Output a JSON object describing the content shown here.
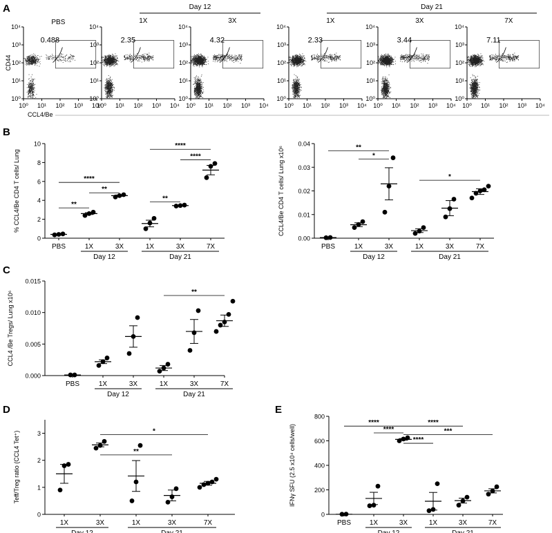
{
  "panel_letters": [
    "A",
    "B",
    "C",
    "D",
    "E"
  ],
  "chart_data": [
    {
      "id": "A",
      "type": "scatter",
      "description_kind": "flow-cytometry-dot-plots",
      "xlabel": "CCL4/Be",
      "ylabel": "CD44",
      "x_ticks": [
        "10⁰",
        "10¹",
        "10²",
        "10³",
        "10⁴"
      ],
      "y_ticks": [
        "10⁰",
        "10¹",
        "10²",
        "10³",
        "10⁴"
      ],
      "x_range_log": [
        0,
        4
      ],
      "y_range_log": [
        0,
        4
      ],
      "group_headers": [
        {
          "label": "Day 12",
          "spans": [
            "1X",
            "3X"
          ]
        },
        {
          "label": "Day 21",
          "spans": [
            "1X",
            "3X",
            "7X"
          ]
        }
      ],
      "plots": [
        {
          "title": "PBS",
          "gate_percent": "0.488",
          "density": 0.25
        },
        {
          "title": "1X",
          "gate_percent": "2.35",
          "density": 0.8
        },
        {
          "title": "3X",
          "gate_percent": "4.32",
          "density": 1.0
        },
        {
          "title": "1X",
          "gate_percent": "2.33",
          "density": 0.85
        },
        {
          "title": "3X",
          "gate_percent": "3.44",
          "density": 0.95
        },
        {
          "title": "7X",
          "gate_percent": "7.11",
          "density": 1.0
        }
      ]
    },
    {
      "id": "B-left",
      "type": "scatter",
      "ylabel": "% CCL4/Be CD4 T cells/ Lung",
      "ylim": [
        0,
        10
      ],
      "y_ticks": [
        "0",
        "2",
        "4",
        "6",
        "8",
        "10"
      ],
      "y_tick_values": [
        0,
        2,
        4,
        6,
        8,
        10
      ],
      "categories": [
        "PBS",
        "1X",
        "3X",
        "1X",
        "3X",
        "7X"
      ],
      "day_groups": [
        {
          "label": "Day 12",
          "from": 1,
          "to": 2
        },
        {
          "label": "Day 21",
          "from": 3,
          "to": 5
        }
      ],
      "series": [
        {
          "name": "PBS",
          "points": [
            0.35,
            0.4,
            0.45
          ],
          "mean": 0.4,
          "sem": 0.04
        },
        {
          "name": "1X Day 12",
          "points": [
            2.4,
            2.6,
            2.75
          ],
          "mean": 2.6,
          "sem": 0.1
        },
        {
          "name": "3X Day 12",
          "points": [
            4.35,
            4.5,
            4.6
          ],
          "mean": 4.5,
          "sem": 0.07
        },
        {
          "name": "1X Day 21",
          "points": [
            1.0,
            1.6,
            2.1
          ],
          "mean": 1.55,
          "sem": 0.35
        },
        {
          "name": "3X Day 21",
          "points": [
            3.4,
            3.45,
            3.5
          ],
          "mean": 3.45,
          "sem": 0.03
        },
        {
          "name": "7X Day 21",
          "points": [
            6.4,
            7.6,
            7.9
          ],
          "mean": 7.2,
          "sem": 0.5
        }
      ],
      "significance": [
        {
          "from": 0,
          "to": 1,
          "level": 3.2,
          "label": "**"
        },
        {
          "from": 0,
          "to": 2,
          "level": 5.9,
          "label": "****"
        },
        {
          "from": 1,
          "to": 2,
          "level": 4.8,
          "label": "**"
        },
        {
          "from": 3,
          "to": 4,
          "level": 3.85,
          "label": "**"
        },
        {
          "from": 3,
          "to": 5,
          "level": 9.4,
          "label": "****"
        },
        {
          "from": 4,
          "to": 5,
          "level": 8.3,
          "label": "****"
        }
      ]
    },
    {
      "id": "B-right",
      "type": "scatter",
      "ylabel": "CCL4/Be CD4 T cells/ Lung x10⁶",
      "ylim": [
        0,
        0.04
      ],
      "y_ticks": [
        "0.00",
        "0.01",
        "0.02",
        "0.03",
        "0.04"
      ],
      "y_tick_values": [
        0,
        0.01,
        0.02,
        0.03,
        0.04
      ],
      "categories": [
        "PBS",
        "1X",
        "3X",
        "1X",
        "3X",
        "7X"
      ],
      "day_groups": [
        {
          "label": "Day 12",
          "from": 1,
          "to": 2
        },
        {
          "label": "Day 21",
          "from": 3,
          "to": 5
        }
      ],
      "series": [
        {
          "name": "PBS",
          "points": [
            0.0002,
            0.0003
          ],
          "mean": 0.00025,
          "sem": 0.0
        },
        {
          "name": "1X Day 12",
          "points": [
            0.0045,
            0.0058,
            0.007
          ],
          "mean": 0.0057,
          "sem": 0.0008
        },
        {
          "name": "3X Day 12",
          "points": [
            0.011,
            0.022,
            0.034
          ],
          "mean": 0.023,
          "sem": 0.0068
        },
        {
          "name": "1X Day 21",
          "points": [
            0.002,
            0.003,
            0.0045
          ],
          "mean": 0.0032,
          "sem": 0.0008
        },
        {
          "name": "3X Day 21",
          "points": [
            0.009,
            0.0125,
            0.0165
          ],
          "mean": 0.0127,
          "sem": 0.0032
        },
        {
          "name": "7X Day 21",
          "points": [
            0.017,
            0.019,
            0.02,
            0.0205,
            0.022
          ],
          "mean": 0.0197,
          "sem": 0.0012
        }
      ],
      "significance": [
        {
          "from": 0,
          "to": 2,
          "level": 0.037,
          "label": "**"
        },
        {
          "from": 1,
          "to": 2,
          "level": 0.0335,
          "label": "*"
        },
        {
          "from": 3,
          "to": 5,
          "level": 0.0245,
          "label": "*"
        }
      ]
    },
    {
      "id": "C",
      "type": "scatter",
      "ylabel": "CCL4 /Be Tregs/ Lung x10⁶",
      "ylim": [
        0,
        0.015
      ],
      "y_ticks": [
        "0.000",
        "0.005",
        "0.010",
        "0.015"
      ],
      "y_tick_values": [
        0,
        0.005,
        0.01,
        0.015
      ],
      "categories": [
        "PBS",
        "1X",
        "3X",
        "1X",
        "3X",
        "7X"
      ],
      "day_groups": [
        {
          "label": "Day 12",
          "from": 1,
          "to": 2
        },
        {
          "label": "Day 21",
          "from": 3,
          "to": 5
        }
      ],
      "series": [
        {
          "name": "PBS",
          "points": [
            0.0001,
            0.0001
          ],
          "mean": 0.0001,
          "sem": 0.0
        },
        {
          "name": "1X Day 12",
          "points": [
            0.0016,
            0.0022,
            0.0028
          ],
          "mean": 0.0022,
          "sem": 0.0003
        },
        {
          "name": "3X Day 12",
          "points": [
            0.0035,
            0.0062,
            0.0092
          ],
          "mean": 0.0062,
          "sem": 0.0017
        },
        {
          "name": "1X Day 21",
          "points": [
            0.0007,
            0.0012,
            0.0018
          ],
          "mean": 0.0012,
          "sem": 0.0004
        },
        {
          "name": "3X Day 21",
          "points": [
            0.004,
            0.0068,
            0.0103
          ],
          "mean": 0.007,
          "sem": 0.0019
        },
        {
          "name": "7X Day 21",
          "points": [
            0.007,
            0.008,
            0.0085,
            0.0097,
            0.0118
          ],
          "mean": 0.0087,
          "sem": 0.0009
        }
      ],
      "significance": [
        {
          "from": 3,
          "to": 5,
          "level": 0.0127,
          "label": "**"
        }
      ]
    },
    {
      "id": "D",
      "type": "scatter",
      "ylabel": "Teff/Treg ratio (CCL4 Tet⁺)",
      "ylim": [
        0,
        3.5
      ],
      "y_ticks": [
        "0",
        "1",
        "2",
        "3"
      ],
      "y_tick_values": [
        0,
        1,
        2,
        3
      ],
      "categories": [
        "1X",
        "3X",
        "1X",
        "3X",
        "7X"
      ],
      "day_groups": [
        {
          "label": "Day 12",
          "from": 0,
          "to": 1
        },
        {
          "label": "Day 21",
          "from": 2,
          "to": 4
        }
      ],
      "series": [
        {
          "name": "1X Day 12",
          "points": [
            0.9,
            1.8,
            1.85
          ],
          "mean": 1.5,
          "sem": 0.35
        },
        {
          "name": "3X Day 12",
          "points": [
            2.45,
            2.55,
            2.7
          ],
          "mean": 2.57,
          "sem": 0.07
        },
        {
          "name": "1X Day 21",
          "points": [
            0.5,
            1.2,
            2.55
          ],
          "mean": 1.42,
          "sem": 0.57
        },
        {
          "name": "3X Day 21",
          "points": [
            0.45,
            0.65,
            0.95
          ],
          "mean": 0.7,
          "sem": 0.2
        },
        {
          "name": "7X Day 21",
          "points": [
            1.0,
            1.1,
            1.15,
            1.2,
            1.3
          ],
          "mean": 1.15,
          "sem": 0.07
        }
      ],
      "significance": [
        {
          "from": 1,
          "to": 3,
          "level": 2.2,
          "label": "**"
        },
        {
          "from": 1,
          "to": 4,
          "level": 2.95,
          "label": "*"
        }
      ]
    },
    {
      "id": "E",
      "type": "scatter",
      "ylabel": "IFNγ SFU (2.5 x10⁴ cells/well)",
      "ylim": [
        0,
        800
      ],
      "y_ticks": [
        "0",
        "200",
        "400",
        "600",
        "800"
      ],
      "y_tick_values": [
        0,
        200,
        400,
        600,
        800
      ],
      "categories": [
        "PBS",
        "1X",
        "3X",
        "1X",
        "3X",
        "7X"
      ],
      "day_groups": [
        {
          "label": "Day 12",
          "from": 1,
          "to": 2
        },
        {
          "label": "Day 21",
          "from": 3,
          "to": 5
        }
      ],
      "series": [
        {
          "name": "PBS",
          "points": [
            1,
            2
          ],
          "mean": 1,
          "sem": 0
        },
        {
          "name": "1X Day 12",
          "points": [
            70,
            75,
            230
          ],
          "mean": 130,
          "sem": 50
        },
        {
          "name": "3X Day 12",
          "points": [
            600,
            615,
            625
          ],
          "mean": 612,
          "sem": 7
        },
        {
          "name": "1X Day 21",
          "points": [
            30,
            40,
            250
          ],
          "mean": 107,
          "sem": 72
        },
        {
          "name": "3X Day 21",
          "points": [
            75,
            110,
            140
          ],
          "mean": 112,
          "sem": 20
        },
        {
          "name": "7X Day 21",
          "points": [
            165,
            190,
            225
          ],
          "mean": 192,
          "sem": 17
        }
      ],
      "significance": [
        {
          "from": 0,
          "to": 2,
          "level": 720,
          "label": "****"
        },
        {
          "from": 1,
          "to": 2,
          "level": 665,
          "label": "****"
        },
        {
          "from": 2,
          "to": 3,
          "level": 580,
          "label": "****"
        },
        {
          "from": 2,
          "to": 4,
          "level": 720,
          "label": "****"
        },
        {
          "from": 2,
          "to": 5,
          "level": 650,
          "label": "***"
        }
      ]
    }
  ]
}
